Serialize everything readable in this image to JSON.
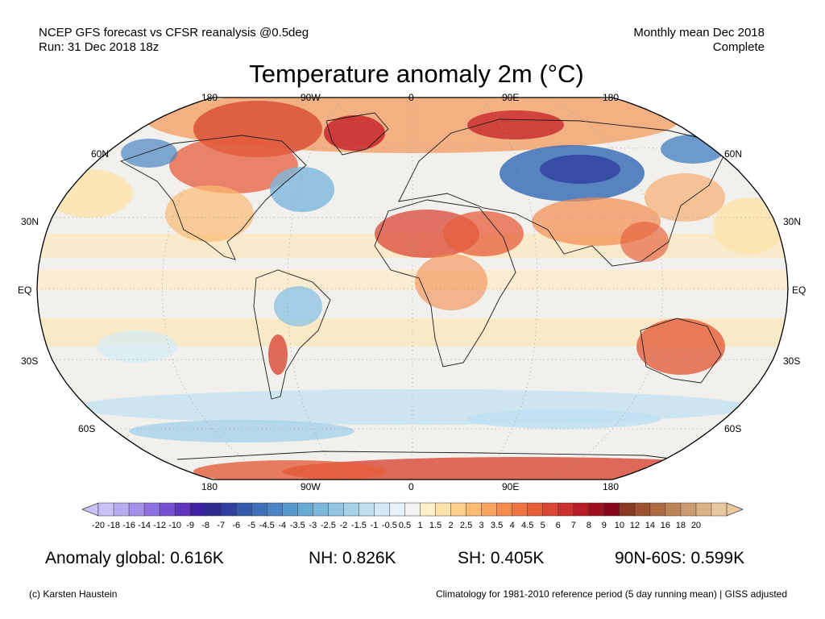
{
  "header": {
    "left_line1": "NCEP GFS forecast vs CFSR reanalysis @0.5deg",
    "left_line2": "Run: 31 Dec 2018 18z",
    "right_line1": "Monthly mean Dec 2018",
    "right_line2": "Complete"
  },
  "title": "Temperature anomaly 2m (°C)",
  "axes": {
    "lon_top": [
      "180",
      "90W",
      "0",
      "90E",
      "180"
    ],
    "lon_bottom": [
      "180",
      "90W",
      "0",
      "90E",
      "180"
    ],
    "lat_left": [
      "60N",
      "30N",
      "EQ",
      "30S",
      "60S"
    ],
    "lat_right": [
      "60N",
      "30N",
      "EQ",
      "30S",
      "60S"
    ]
  },
  "colorbar": {
    "labels": [
      "-20",
      "-18",
      "-16",
      "-14",
      "-12",
      "-10",
      "-9",
      "-8",
      "-7",
      "-6",
      "-5",
      "-4.5",
      "-4",
      "-3.5",
      "-3",
      "-2.5",
      "-2",
      "-1.5",
      "-1",
      "-0.5",
      "0.5",
      "1",
      "1.5",
      "2",
      "2.5",
      "3",
      "3.5",
      "4",
      "4.5",
      "5",
      "6",
      "7",
      "8",
      "9",
      "10",
      "12",
      "14",
      "16",
      "18",
      "20"
    ],
    "colors": [
      "#c8c2f6",
      "#b7abf1",
      "#a48feb",
      "#8e6fe0",
      "#7650d2",
      "#5f37bd",
      "#3f21a0",
      "#2d2a8e",
      "#2e3f9e",
      "#315aab",
      "#3d70b8",
      "#4a84c2",
      "#5a97cb",
      "#6aa8d4",
      "#7cb8dc",
      "#90c6e3",
      "#a6d3ea",
      "#bde0f1",
      "#d3ebf6",
      "#e8f4fa",
      "#f3f3f3",
      "#fdf1c8",
      "#fde4a8",
      "#fcd08a",
      "#fbbb73",
      "#f8a45f",
      "#f48c4f",
      "#ee7444",
      "#e55e3b",
      "#da4734",
      "#c9302d",
      "#b41f26",
      "#9d1020",
      "#850719",
      "#8a3a22",
      "#9c5230",
      "#ac6a44",
      "#bc8259",
      "#cb9a70",
      "#dab286",
      "#e8c8a0"
    ]
  },
  "stats": {
    "global": "Anomaly global: 0.616K",
    "nh": "NH: 0.826K",
    "sh": "SH: 0.405K",
    "arctic": "90N-60S: 0.599K"
  },
  "footer": {
    "credit": "(c) Karsten Haustein",
    "note": "Climatology for 1981-2010 reference period (5 day running mean) | GISS adjusted"
  }
}
